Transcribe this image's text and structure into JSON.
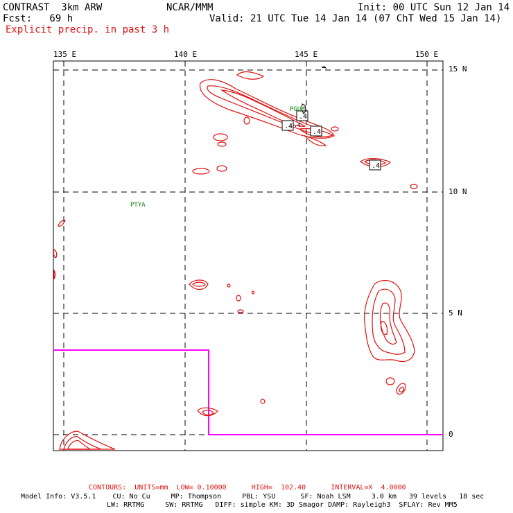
{
  "header": {
    "model": "CONTRAST  3km ARW",
    "org": "NCAR/MMM",
    "init": "Init: 00 UTC Sun 12 Jan 14",
    "fcst": "Fcst:   69 h",
    "valid": "Valid: 21 UTC Tue 14 Jan 14 (07 ChT Wed 15 Jan 14)",
    "field": "Explicit precip. in past 3 h"
  },
  "axes": {
    "lon_labels": [
      "135 E",
      "140 E",
      "145 E",
      "150 E"
    ],
    "lat_labels": [
      "15 N",
      "10 N",
      "5 N",
      "0"
    ]
  },
  "stations": [
    "PGUM",
    "PTYA"
  ],
  "contour_labels": [
    ".4",
    ".4",
    ".4",
    ".4",
    ".4"
  ],
  "colors": {
    "contour": "#e01010",
    "grid": "#000000",
    "domain_box": "#ff00ff",
    "station": "#138013"
  },
  "footer": {
    "contours": "CONTOURS:  UNITS=mm  LOW= 0.10000      HIGH=  102.40      INTERVAL=X  4.0000",
    "model_info": "Model Info: V3.5.1    CU: No Cu     MP: Thompson     PBL: YSU      SF: Noah LSM     3.0 km   39 levels   18 sec",
    "model_info2": "LW: RRTMG     SW: RRTMG   DIFF: simple KM: 3D Smagor DAMP: Rayleigh3  SFLAY: Rev MM5"
  }
}
